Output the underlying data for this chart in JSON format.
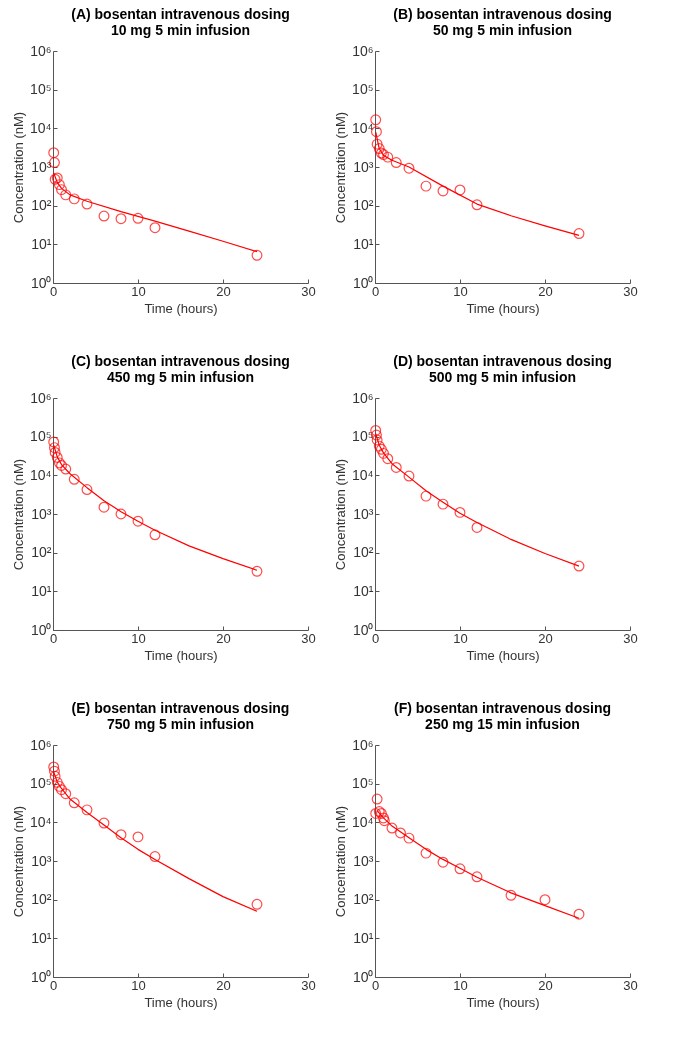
{
  "chart_data": [
    {
      "type": "scatter",
      "title": "(A) bosentan intravenous dosing",
      "subtitle": "10 mg 5 min infusion",
      "xlabel": "Time (hours)",
      "ylabel": "Concentration (nM)",
      "xlim": [
        0,
        30
      ],
      "xticks": [
        0,
        10,
        20,
        30
      ],
      "ylim": [
        1,
        1000000
      ],
      "yticks": [
        {
          "value": 1,
          "label": "10⁰"
        },
        {
          "value": 10,
          "label": "10¹"
        },
        {
          "value": 100,
          "label": "10²"
        },
        {
          "value": 1000,
          "label": "10³"
        },
        {
          "value": 10000,
          "label": "10⁴"
        },
        {
          "value": 100000,
          "label": "10⁵"
        },
        {
          "value": 1000000,
          "label": "10⁶"
        }
      ],
      "log": "y",
      "grid": false,
      "series": [
        {
          "type": "scatter",
          "marker": "circle",
          "color": "#ff0000",
          "x": [
            0.083,
            0.17,
            0.25,
            0.5,
            0.75,
            1,
            1.5,
            2.5,
            4,
            6,
            8,
            10,
            12,
            24
          ],
          "values": [
            2350,
            1300,
            480,
            520,
            350,
            260,
            190,
            150,
            110,
            54,
            46,
            47,
            27,
            5.2
          ]
        },
        {
          "type": "line",
          "color": "#ff0000",
          "x": [
            0.083,
            0.5,
            1,
            2,
            4,
            8,
            12,
            16,
            20,
            24
          ],
          "values": [
            700,
            400,
            280,
            190,
            130,
            70,
            40,
            22,
            12,
            6.5
          ]
        }
      ]
    },
    {
      "type": "scatter",
      "title": "(B) bosentan intravenous dosing",
      "subtitle": "50 mg 5 min infusion",
      "xlabel": "Time (hours)",
      "ylabel": "Concentration (nM)",
      "xlim": [
        0,
        30
      ],
      "xticks": [
        0,
        10,
        20,
        30
      ],
      "ylim": [
        1,
        1000000
      ],
      "yticks": [
        {
          "value": 1,
          "label": "10⁰"
        },
        {
          "value": 10,
          "label": "10¹"
        },
        {
          "value": 100,
          "label": "10²"
        },
        {
          "value": 1000,
          "label": "10³"
        },
        {
          "value": 10000,
          "label": "10⁴"
        },
        {
          "value": 100000,
          "label": "10⁵"
        },
        {
          "value": 1000000,
          "label": "10⁶"
        }
      ],
      "log": "y",
      "grid": false,
      "series": [
        {
          "type": "scatter",
          "marker": "circle",
          "color": "#ff0000",
          "x": [
            0.083,
            0.17,
            0.25,
            0.5,
            0.75,
            1,
            1.5,
            2.5,
            4,
            6,
            8,
            10,
            12,
            24
          ],
          "values": [
            16600,
            8200,
            3900,
            3000,
            2300,
            2100,
            1800,
            1300,
            930,
            320,
            240,
            255,
            105,
            19
          ]
        },
        {
          "type": "line",
          "color": "#ff0000",
          "x": [
            0.083,
            0.5,
            1,
            2,
            4,
            8,
            12,
            16,
            20,
            24
          ],
          "values": [
            8000,
            3000,
            2000,
            1500,
            1000,
            320,
            110,
            55,
            30,
            17
          ]
        }
      ]
    },
    {
      "type": "scatter",
      "title": "(C) bosentan intravenous dosing",
      "subtitle": "450 mg 5 min infusion",
      "xlabel": "Time (hours)",
      "ylabel": "Concentration (nM)",
      "xlim": [
        0,
        30
      ],
      "xticks": [
        0,
        10,
        20,
        30
      ],
      "ylim": [
        1,
        1000000
      ],
      "yticks": [
        {
          "value": 1,
          "label": "10⁰"
        },
        {
          "value": 10,
          "label": "10¹"
        },
        {
          "value": 100,
          "label": "10²"
        },
        {
          "value": 1000,
          "label": "10³"
        },
        {
          "value": 10000,
          "label": "10⁴"
        },
        {
          "value": 100000,
          "label": "10⁵"
        },
        {
          "value": 1000000,
          "label": "10⁶"
        }
      ],
      "log": "y",
      "grid": false,
      "series": [
        {
          "type": "scatter",
          "marker": "circle",
          "color": "#ff0000",
          "x": [
            0.083,
            0.17,
            0.25,
            0.5,
            0.75,
            1,
            1.5,
            2.5,
            4,
            6,
            8,
            10,
            12,
            24
          ],
          "values": [
            73000,
            52000,
            39000,
            29000,
            21000,
            18000,
            14500,
            7900,
            4300,
            1500,
            1000,
            650,
            290,
            33
          ]
        },
        {
          "type": "line",
          "color": "#ff0000",
          "x": [
            0.083,
            0.5,
            1,
            2,
            4,
            6,
            8,
            10,
            12,
            16,
            20,
            24
          ],
          "values": [
            60000,
            30000,
            19000,
            11000,
            4800,
            2200,
            1150,
            650,
            380,
            150,
            70,
            35
          ]
        }
      ]
    },
    {
      "type": "scatter",
      "title": "(D) bosentan intravenous dosing",
      "subtitle": "500 mg 5 min infusion",
      "xlabel": "Time (hours)",
      "ylabel": "Concentration (nM)",
      "xlim": [
        0,
        30
      ],
      "xticks": [
        0,
        10,
        20,
        30
      ],
      "ylim": [
        1,
        1000000
      ],
      "yticks": [
        {
          "value": 1,
          "label": "10⁰"
        },
        {
          "value": 10,
          "label": "10¹"
        },
        {
          "value": 100,
          "label": "10²"
        },
        {
          "value": 1000,
          "label": "10³"
        },
        {
          "value": 10000,
          "label": "10⁴"
        },
        {
          "value": 100000,
          "label": "10⁵"
        },
        {
          "value": 1000000,
          "label": "10⁶"
        }
      ],
      "log": "y",
      "grid": false,
      "series": [
        {
          "type": "scatter",
          "marker": "circle",
          "color": "#ff0000",
          "x": [
            0.083,
            0.17,
            0.25,
            0.5,
            0.75,
            1,
            1.5,
            2.5,
            4,
            6,
            8,
            10,
            12,
            24
          ],
          "values": [
            145000,
            110000,
            82000,
            57000,
            47000,
            37000,
            27000,
            16000,
            9600,
            2900,
            1800,
            1100,
            450,
            45
          ]
        },
        {
          "type": "line",
          "color": "#ff0000",
          "x": [
            0.083,
            0.5,
            1,
            2,
            4,
            6,
            8,
            10,
            12,
            16,
            20,
            24
          ],
          "values": [
            120000,
            60000,
            38000,
            20000,
            9000,
            4000,
            2000,
            1050,
            600,
            220,
            95,
            45
          ]
        }
      ]
    },
    {
      "type": "scatter",
      "title": "(E) bosentan intravenous dosing",
      "subtitle": "750 mg 5 min infusion",
      "xlabel": "Time (hours)",
      "ylabel": "Concentration (nM)",
      "xlim": [
        0,
        30
      ],
      "xticks": [
        0,
        10,
        20,
        30
      ],
      "ylim": [
        1,
        1000000
      ],
      "yticks": [
        {
          "value": 1,
          "label": "10⁰"
        },
        {
          "value": 10,
          "label": "10¹"
        },
        {
          "value": 100,
          "label": "10²"
        },
        {
          "value": 1000,
          "label": "10³"
        },
        {
          "value": 10000,
          "label": "10⁴"
        },
        {
          "value": 100000,
          "label": "10⁵"
        },
        {
          "value": 1000000,
          "label": "10⁶"
        }
      ],
      "log": "y",
      "grid": false,
      "series": [
        {
          "type": "scatter",
          "marker": "circle",
          "color": "#ff0000",
          "x": [
            0.083,
            0.17,
            0.25,
            0.5,
            0.75,
            1,
            1.5,
            2.5,
            4,
            6,
            8,
            10,
            12,
            24
          ],
          "values": [
            270000,
            210000,
            155000,
            108000,
            85000,
            70000,
            55000,
            32000,
            21000,
            9600,
            4800,
            4200,
            1300,
            76
          ]
        },
        {
          "type": "line",
          "color": "#ff0000",
          "x": [
            0.083,
            0.5,
            1,
            2,
            4,
            6,
            8,
            10,
            12,
            16,
            20,
            24
          ],
          "values": [
            200000,
            110000,
            75000,
            40000,
            18000,
            8500,
            4000,
            2000,
            1100,
            350,
            120,
            50
          ]
        }
      ]
    },
    {
      "type": "scatter",
      "title": "(F) bosentan intravenous dosing",
      "subtitle": "250 mg 15 min infusion",
      "xlabel": "Time (hours)",
      "ylabel": "Concentration (nM)",
      "xlim": [
        0,
        30
      ],
      "xticks": [
        0,
        10,
        20,
        30
      ],
      "ylim": [
        1,
        1000000
      ],
      "yticks": [
        {
          "value": 1,
          "label": "10⁰"
        },
        {
          "value": 10,
          "label": "10¹"
        },
        {
          "value": 100,
          "label": "10²"
        },
        {
          "value": 1000,
          "label": "10³"
        },
        {
          "value": 10000,
          "label": "10⁴"
        },
        {
          "value": 100000,
          "label": "10⁵"
        },
        {
          "value": 1000000,
          "label": "10⁶"
        }
      ],
      "log": "y",
      "grid": false,
      "series": [
        {
          "type": "scatter",
          "marker": "circle",
          "color": "#ff0000",
          "x": [
            0.083,
            0.25,
            0.5,
            0.75,
            1,
            1.1,
            2,
            3,
            4,
            6,
            8,
            10,
            12,
            16,
            20,
            24
          ],
          "values": [
            17000,
            40000,
            19000,
            17000,
            13000,
            11000,
            7100,
            5300,
            3900,
            1600,
            930,
            630,
            390,
            130,
            100,
            42
          ]
        },
        {
          "type": "line",
          "color": "#ff0000",
          "x": [
            0.25,
            1,
            2,
            4,
            6,
            8,
            10,
            12,
            16,
            20,
            24
          ],
          "values": [
            20000,
            13000,
            8000,
            4000,
            2000,
            1100,
            650,
            380,
            150,
            70,
            33
          ]
        }
      ]
    }
  ]
}
